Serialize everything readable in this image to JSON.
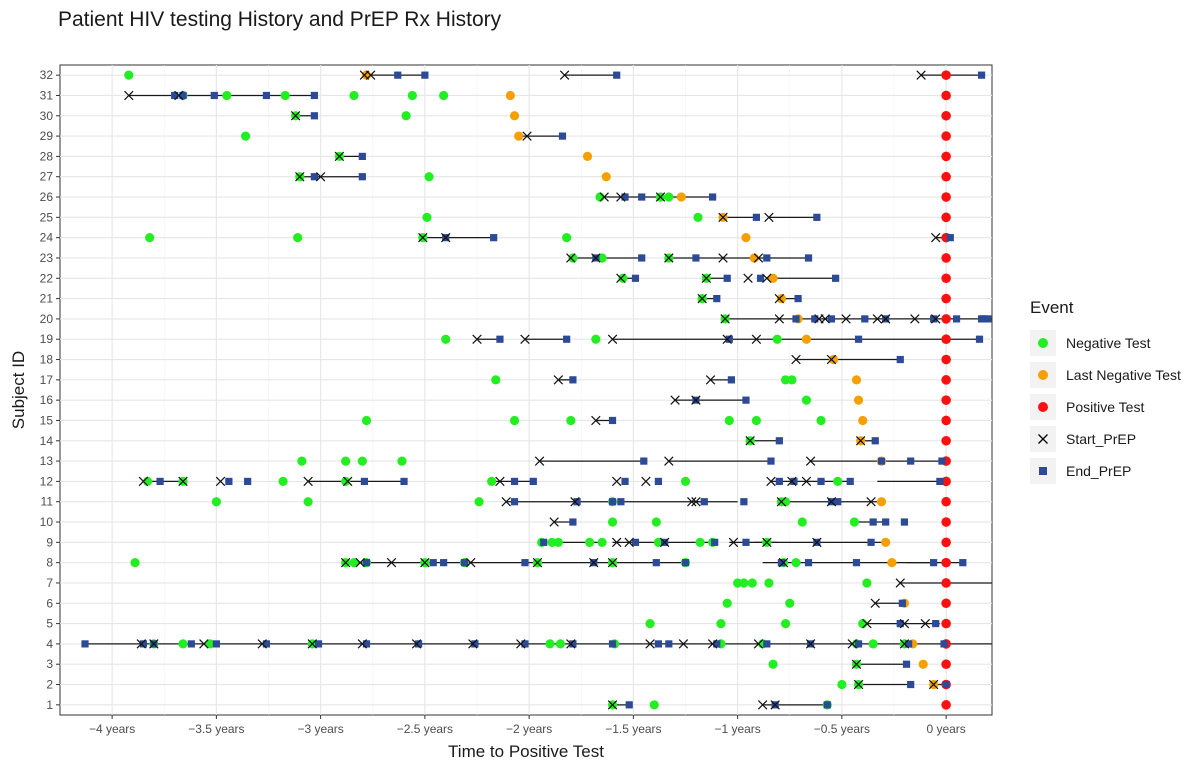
{
  "title": "Patient HIV testing History and PrEP Rx History",
  "chart_data": {
    "type": "scatter",
    "title": "Patient HIV testing History and PrEP Rx History",
    "xlabel": "Time to Positive Test",
    "ylabel": "Subject ID",
    "xlim": [
      -4.25,
      0.22
    ],
    "ylim": [
      0.5,
      32.5
    ],
    "x_ticks": [
      -4,
      -3.5,
      -3,
      -2.5,
      -2,
      -1.5,
      -1,
      -0.5,
      0
    ],
    "x_tick_labels": [
      "−4 years",
      "−3.5 years",
      "−3 years",
      "−2.5 years",
      "−2 years",
      "−1.5 years",
      "−1 years",
      "−0.5 years",
      "0 years"
    ],
    "y_ticks": [
      1,
      2,
      3,
      4,
      5,
      6,
      7,
      8,
      9,
      10,
      11,
      12,
      13,
      14,
      15,
      16,
      17,
      18,
      19,
      20,
      21,
      22,
      23,
      24,
      25,
      26,
      27,
      28,
      29,
      30,
      31,
      32
    ],
    "grid": true,
    "legend": {
      "title": "Event",
      "position": "right",
      "items": [
        {
          "label": "Negative Test",
          "shape": "circle",
          "color": "#22ee22"
        },
        {
          "label": "Last Negative Test",
          "shape": "circle",
          "color": "#f5a000"
        },
        {
          "label": "Positive Test",
          "shape": "circle",
          "color": "#ff1010"
        },
        {
          "label": "Start_PrEP",
          "shape": "cross",
          "color": "#000000"
        },
        {
          "label": "End_PrEP",
          "shape": "square",
          "color": "#2c4a96"
        }
      ]
    },
    "subjects": [
      {
        "id": 1,
        "neg": [
          -1.6,
          -1.4,
          -0.57
        ],
        "lastneg": [],
        "pos": 0,
        "segments": [
          [
            -1.6,
            -1.52
          ],
          [
            -0.88,
            -0.57
          ]
        ],
        "starts": [
          -1.6,
          -0.88,
          -0.82
        ],
        "ends": [
          -1.52,
          -0.82,
          -0.57
        ]
      },
      {
        "id": 2,
        "neg": [
          -0.5,
          -0.42
        ],
        "lastneg": [
          -0.06
        ],
        "pos": 0,
        "segments": [
          [
            -0.42,
            -0.17
          ],
          [
            -0.06,
            0.0
          ]
        ],
        "starts": [
          -0.42,
          -0.06
        ],
        "ends": [
          -0.17,
          0.0
        ]
      },
      {
        "id": 3,
        "neg": [
          -0.83,
          -0.43
        ],
        "lastneg": [
          -0.11
        ],
        "pos": 0,
        "segments": [
          [
            -0.43,
            -0.19
          ]
        ],
        "starts": [
          -0.43
        ],
        "ends": [
          -0.19
        ]
      },
      {
        "id": 4,
        "neg": [
          -3.8,
          -3.66,
          -3.53,
          -3.04,
          -1.9,
          -1.85,
          -1.59,
          -1.08,
          -0.88,
          -0.43,
          -0.35,
          -0.2
        ],
        "lastneg": [
          -0.16
        ],
        "pos": 0,
        "segments": [
          [
            -4.13,
            0.22
          ]
        ],
        "starts": [
          -3.86,
          -3.8,
          -3.56,
          -3.28,
          -3.04,
          -2.8,
          -2.54,
          -2.27,
          -2.04,
          -1.8,
          -1.42,
          -1.26,
          -1.12,
          -0.9,
          -0.65,
          -0.45,
          -0.2
        ],
        "ends": [
          -4.13,
          -3.85,
          -3.8,
          -3.62,
          -3.5,
          -3.26,
          -3.01,
          -2.78,
          -2.53,
          -2.26,
          -2.02,
          -1.79,
          -1.6,
          -1.38,
          -1.33,
          -1.1,
          -0.86,
          -0.65,
          -0.42,
          -0.18,
          -0.01
        ]
      },
      {
        "id": 5,
        "neg": [
          -1.42,
          -1.08,
          -0.77,
          -0.4
        ],
        "lastneg": [],
        "pos": 0,
        "segments": [
          [
            -0.38,
            -0.03
          ]
        ],
        "starts": [
          -0.38,
          -0.2,
          -0.1
        ],
        "ends": [
          -0.22,
          -0.05
        ]
      },
      {
        "id": 6,
        "neg": [
          -1.05,
          -0.75
        ],
        "lastneg": [
          -0.2
        ],
        "pos": 0,
        "segments": [
          [
            -0.34,
            -0.2
          ]
        ],
        "starts": [
          -0.34
        ],
        "ends": [
          -0.21
        ]
      },
      {
        "id": 7,
        "neg": [
          -1.0,
          -0.97,
          -0.93,
          -0.85,
          -0.38
        ],
        "lastneg": [],
        "pos": 0,
        "segments": [
          [
            -0.22,
            0.22
          ]
        ],
        "starts": [
          -0.22
        ],
        "ends": []
      },
      {
        "id": 8,
        "neg": [
          -3.89,
          -2.88,
          -2.84,
          -2.78,
          -2.5,
          -2.31,
          -1.96,
          -1.6,
          -1.25,
          -0.78,
          -0.72
        ],
        "lastneg": [
          -0.26
        ],
        "pos": 0,
        "segments": [
          [
            -2.88,
            -1.25
          ],
          [
            -0.88,
            -0.06
          ],
          [
            -0.19,
            0.08
          ]
        ],
        "starts": [
          -2.88,
          -2.81,
          -2.66,
          -2.5,
          -2.28,
          -1.96,
          -1.69,
          -1.6,
          -0.78
        ],
        "ends": [
          -2.78,
          -2.46,
          -2.41,
          -2.31,
          -2.02,
          -1.69,
          -1.39,
          -1.25,
          -0.79,
          -0.66,
          -0.43,
          -0.06,
          0.08
        ]
      },
      {
        "id": 9,
        "neg": [
          -1.94,
          -1.89,
          -1.86,
          -1.71,
          -1.65,
          -1.38,
          -1.18,
          -1.12,
          -0.86
        ],
        "lastneg": [
          -0.29
        ],
        "pos": 0,
        "segments": [
          [
            -1.9,
            -1.65
          ],
          [
            -1.6,
            -1.13
          ],
          [
            -1.04,
            -0.81
          ],
          [
            -0.92,
            -0.31
          ]
        ],
        "starts": [
          -1.58,
          -1.52,
          -1.35,
          -1.02,
          -0.86,
          -0.62
        ],
        "ends": [
          -1.93,
          -1.49,
          -1.35,
          -1.11,
          -0.96,
          -0.62,
          -0.36
        ]
      },
      {
        "id": 10,
        "neg": [
          -1.6,
          -1.39,
          -0.69,
          -0.44
        ],
        "lastneg": [],
        "pos": 0,
        "segments": [
          [
            -1.88,
            -1.79
          ],
          [
            -0.44,
            -0.29
          ]
        ],
        "starts": [
          -1.88
        ],
        "ends": [
          -1.79,
          -0.35,
          -0.29,
          -0.2
        ]
      },
      {
        "id": 11,
        "neg": [
          -3.5,
          -3.06,
          -2.24,
          -1.6,
          -0.79,
          -0.77
        ],
        "lastneg": [
          -0.31
        ],
        "pos": 0,
        "segments": [
          [
            -2.11,
            -1.16
          ],
          [
            -1.2,
            -1.0
          ],
          [
            -0.79,
            -0.31
          ]
        ],
        "starts": [
          -2.11,
          -1.78,
          -1.22,
          -1.2,
          -0.79,
          -0.55,
          -0.36
        ],
        "ends": [
          -2.07,
          -1.77,
          -1.6,
          -1.56,
          -1.16,
          -0.97,
          -0.55,
          -0.52
        ]
      },
      {
        "id": 12,
        "neg": [
          -3.83,
          -3.66,
          -3.18,
          -2.88,
          -2.18,
          -1.25,
          -0.52
        ],
        "lastneg": [],
        "pos": 0,
        "segments": [
          [
            -3.85,
            -3.66
          ],
          [
            -3.06,
            -2.6
          ],
          [
            -2.16,
            -1.98
          ],
          [
            -0.84,
            -0.46
          ],
          [
            -0.33,
            -0.03
          ]
        ],
        "starts": [
          -3.85,
          -3.66,
          -3.48,
          -3.06,
          -2.87,
          -2.14,
          -1.58,
          -1.44,
          -0.84,
          -0.74,
          -0.67
        ],
        "ends": [
          -3.77,
          -3.44,
          -3.35,
          -2.79,
          -2.6,
          -2.07,
          -1.98,
          -1.54,
          -1.38,
          -0.8,
          -0.73,
          -0.6,
          -0.46,
          -0.03
        ]
      },
      {
        "id": 13,
        "neg": [
          -3.09,
          -2.88,
          -2.8,
          -2.61
        ],
        "lastneg": [
          -0.31
        ],
        "pos": 0,
        "segments": [
          [
            -1.95,
            -1.45
          ],
          [
            -1.33,
            -0.84
          ],
          [
            -0.65,
            0.0
          ]
        ],
        "starts": [
          -1.95,
          -1.33,
          -0.65
        ],
        "ends": [
          -1.45,
          -0.84,
          -0.31,
          -0.17,
          -0.02
        ]
      },
      {
        "id": 14,
        "neg": [
          -0.94
        ],
        "lastneg": [
          -0.41
        ],
        "pos": 0,
        "segments": [
          [
            -0.94,
            -0.8
          ],
          [
            -0.41,
            -0.35
          ]
        ],
        "starts": [
          -0.94,
          -0.41
        ],
        "ends": [
          -0.8,
          -0.34
        ]
      },
      {
        "id": 15,
        "neg": [
          -2.78,
          -2.07,
          -1.8,
          -1.04,
          -0.91,
          -0.6
        ],
        "lastneg": [
          -0.4
        ],
        "pos": 0,
        "segments": [
          [
            -1.68,
            -1.6
          ]
        ],
        "starts": [
          -1.68
        ],
        "ends": [
          -1.6
        ]
      },
      {
        "id": 16,
        "neg": [
          -0.67
        ],
        "lastneg": [
          -0.42
        ],
        "pos": 0,
        "segments": [
          [
            -1.3,
            -0.96
          ]
        ],
        "starts": [
          -1.3,
          -1.2
        ],
        "ends": [
          -1.2,
          -0.96
        ]
      },
      {
        "id": 17,
        "neg": [
          -2.16,
          -0.77,
          -0.74
        ],
        "lastneg": [
          -0.43
        ],
        "pos": 0,
        "segments": [
          [
            -1.86,
            -1.8
          ],
          [
            -1.13,
            -1.04
          ]
        ],
        "starts": [
          -1.86,
          -1.13
        ],
        "ends": [
          -1.79,
          -1.03
        ]
      },
      {
        "id": 18,
        "neg": [
          -0.54
        ],
        "lastneg": [
          -0.54
        ],
        "pos": 0,
        "segments": [
          [
            -0.72,
            -0.22
          ]
        ],
        "starts": [
          -0.72,
          -0.55
        ],
        "ends": [
          -0.22
        ]
      },
      {
        "id": 19,
        "neg": [
          -2.4,
          -1.68,
          -0.81
        ],
        "lastneg": [
          -0.67
        ],
        "pos": 0,
        "segments": [
          [
            -2.25,
            -2.14
          ],
          [
            -2.02,
            -1.82
          ],
          [
            -1.6,
            0.16
          ]
        ],
        "starts": [
          -2.25,
          -2.02,
          -1.6,
          -1.05,
          -0.91
        ],
        "ends": [
          -2.14,
          -1.82,
          -1.04,
          -0.42,
          0.16
        ]
      },
      {
        "id": 20,
        "neg": [
          -1.06
        ],
        "lastneg": [
          -0.71
        ],
        "pos": 0,
        "segments": [
          [
            -1.06,
            0.22
          ]
        ],
        "starts": [
          -1.06,
          -0.8,
          -0.61,
          -0.58,
          -0.48,
          -0.33,
          -0.29,
          -0.15,
          -0.05
        ],
        "ends": [
          -0.72,
          -0.63,
          -0.55,
          -0.39,
          -0.29,
          -0.06,
          0.05,
          0.17,
          0.18,
          0.2
        ]
      },
      {
        "id": 21,
        "neg": [
          -1.17
        ],
        "lastneg": [
          -0.79
        ],
        "pos": 0,
        "segments": [
          [
            -1.17,
            -1.1
          ],
          [
            -0.8,
            -0.71
          ]
        ],
        "starts": [
          -1.17,
          -0.8
        ],
        "ends": [
          -1.1,
          -0.71
        ]
      },
      {
        "id": 22,
        "neg": [
          -1.55,
          -1.15
        ],
        "lastneg": [
          -0.83
        ],
        "pos": 0,
        "segments": [
          [
            -1.56,
            -1.49
          ],
          [
            -1.15,
            -1.05
          ],
          [
            -0.86,
            -0.53
          ]
        ],
        "starts": [
          -1.56,
          -1.15,
          -0.95,
          -0.86
        ],
        "ends": [
          -1.49,
          -1.05,
          -0.89,
          -0.53
        ]
      },
      {
        "id": 23,
        "neg": [
          -1.79,
          -1.65,
          -1.33
        ],
        "lastneg": [
          -0.92
        ],
        "pos": 0,
        "segments": [
          [
            -1.8,
            -1.46
          ],
          [
            -1.33,
            -0.66
          ]
        ],
        "starts": [
          -1.8,
          -1.68,
          -1.33,
          -1.07,
          -0.9
        ],
        "ends": [
          -1.68,
          -1.46,
          -1.2,
          -0.86,
          -0.66
        ]
      },
      {
        "id": 24,
        "neg": [
          -3.82,
          -3.11,
          -2.51,
          -1.82
        ],
        "lastneg": [
          -0.96
        ],
        "pos": 0,
        "segments": [
          [
            -2.51,
            -2.17
          ],
          [
            -0.05,
            0.02
          ]
        ],
        "starts": [
          -2.51,
          -2.4,
          -0.05
        ],
        "ends": [
          -2.4,
          -2.17,
          0.02
        ]
      },
      {
        "id": 25,
        "neg": [
          -2.49,
          -1.19
        ],
        "lastneg": [
          -1.07
        ],
        "pos": 0,
        "segments": [
          [
            -1.07,
            -0.91
          ],
          [
            -0.85,
            -0.62
          ]
        ],
        "starts": [
          -1.07,
          -0.85
        ],
        "ends": [
          -0.91,
          -0.62
        ]
      },
      {
        "id": 26,
        "neg": [
          -1.66,
          -1.37,
          -1.33
        ],
        "lastneg": [
          -1.27
        ],
        "pos": 0,
        "segments": [
          [
            -1.64,
            -1.12
          ]
        ],
        "starts": [
          -1.64,
          -1.56,
          -1.37
        ],
        "ends": [
          -1.54,
          -1.46,
          -1.12
        ]
      },
      {
        "id": 27,
        "neg": [
          -3.1,
          -2.48
        ],
        "lastneg": [
          -1.63
        ],
        "pos": 0,
        "segments": [
          [
            -3.1,
            -2.8
          ]
        ],
        "starts": [
          -3.1,
          -3.0
        ],
        "ends": [
          -3.03,
          -2.8
        ]
      },
      {
        "id": 28,
        "neg": [
          -2.91
        ],
        "lastneg": [
          -1.72
        ],
        "pos": 0,
        "segments": [
          [
            -2.91,
            -2.8
          ]
        ],
        "starts": [
          -2.91
        ],
        "ends": [
          -2.8
        ]
      },
      {
        "id": 29,
        "neg": [
          -3.36
        ],
        "lastneg": [
          -2.05
        ],
        "pos": 0,
        "segments": [
          [
            -2.05,
            -1.84
          ]
        ],
        "starts": [
          -2.01
        ],
        "ends": [
          -1.84
        ]
      },
      {
        "id": 30,
        "neg": [
          -3.12,
          -2.59
        ],
        "lastneg": [
          -2.07
        ],
        "pos": 0,
        "segments": [
          [
            -3.12,
            -3.03
          ]
        ],
        "starts": [
          -3.12
        ],
        "ends": [
          -3.03
        ]
      },
      {
        "id": 31,
        "neg": [
          -3.66,
          -3.45,
          -3.17,
          -2.84,
          -2.56,
          -2.41
        ],
        "lastneg": [
          -2.09
        ],
        "pos": 0,
        "segments": [
          [
            -3.92,
            -3.03
          ]
        ],
        "starts": [
          -3.92,
          -3.68
        ],
        "ends": [
          -3.7,
          -3.66,
          -3.51,
          -3.26,
          -3.03
        ]
      },
      {
        "id": 32,
        "neg": [
          -3.92
        ],
        "lastneg": [
          -2.78
        ],
        "pos": 0,
        "segments": [
          [
            -2.79,
            -2.5
          ],
          [
            -1.83,
            -1.58
          ],
          [
            -0.12,
            0.17
          ]
        ],
        "starts": [
          -2.79,
          -2.76,
          -1.83,
          -0.12
        ],
        "ends": [
          -2.63,
          -2.5,
          -1.58,
          0.17
        ]
      }
    ]
  }
}
